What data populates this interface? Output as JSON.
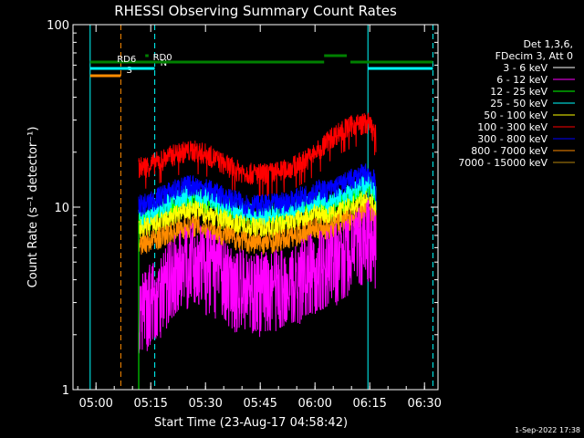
{
  "chart_data": {
    "type": "line",
    "title": "RHESSI Observing Summary Count Rates",
    "xlabel": "Start Time (23-Aug-17 04:58:42)",
    "ylabel": "Count Rate (s⁻¹ detector⁻¹)",
    "y_scale": "log",
    "ylim": [
      1,
      100
    ],
    "xlim_minutes_after_start": [
      -5,
      95
    ],
    "x_ticks": [
      {
        "label": "05:00",
        "minutes": 1.3
      },
      {
        "label": "05:15",
        "minutes": 16.3
      },
      {
        "label": "05:30",
        "minutes": 31.3
      },
      {
        "label": "05:45",
        "minutes": 46.3
      },
      {
        "label": "06:00",
        "minutes": 61.3
      },
      {
        "label": "06:15",
        "minutes": 76.3
      },
      {
        "label": "06:30",
        "minutes": 91.3
      }
    ],
    "y_ticks": [
      {
        "label": "1",
        "value": 1
      },
      {
        "label": "10",
        "value": 10
      },
      {
        "label": "100",
        "value": 100
      }
    ],
    "legend": {
      "header": [
        "Det 1,3,6,",
        "FDecim 3, Att 0"
      ],
      "placement": "right"
    },
    "series": [
      {
        "name": "3 - 6 keV",
        "color": "#000000",
        "minutes": [
          13,
          16,
          20,
          24,
          28,
          32,
          36,
          40,
          44,
          48,
          52,
          56,
          60,
          63,
          64.5,
          68,
          72,
          76,
          78
        ],
        "values": [
          7.0,
          7.2,
          7.8,
          8.6,
          9.0,
          8.6,
          8.0,
          7.6,
          7.3,
          7.3,
          7.5,
          7.9,
          8.5,
          8.8,
          8.0,
          8.2,
          9.0,
          10.5,
          9.0
        ]
      },
      {
        "name": "6 - 12 keV",
        "color": "#ff00ff",
        "minutes": [
          13,
          16,
          20,
          24,
          28,
          32,
          36,
          40,
          44,
          48,
          52,
          56,
          60,
          63,
          64.5,
          68,
          72,
          76,
          78
        ],
        "values": [
          3.0,
          3.3,
          4.0,
          5.0,
          5.5,
          5.1,
          4.5,
          4.0,
          3.8,
          3.8,
          4.0,
          4.3,
          4.8,
          5.0,
          5.2,
          5.6,
          6.2,
          7.6,
          6.4
        ]
      },
      {
        "name": "12 - 25 keV",
        "color": "#00ff00",
        "minutes": [
          13,
          16,
          20,
          24,
          28,
          32,
          36,
          40,
          44,
          48,
          52,
          56,
          60,
          63,
          64.5,
          68,
          72,
          76,
          78
        ],
        "values": [
          8.2,
          8.5,
          9.5,
          10.5,
          11.0,
          10.4,
          9.5,
          8.9,
          8.6,
          8.6,
          8.8,
          9.3,
          10.0,
          10.5,
          9.8,
          10.5,
          11.8,
          13.5,
          11.5
        ]
      },
      {
        "name": "25 - 50 keV",
        "color": "#00ffff",
        "minutes": [
          13,
          16,
          20,
          24,
          28,
          32,
          36,
          40,
          44,
          48,
          52,
          56,
          60,
          63,
          64.5,
          68,
          72,
          76,
          78
        ],
        "values": [
          8.8,
          9.2,
          10.3,
          11.3,
          11.8,
          11.2,
          10.3,
          9.6,
          9.2,
          9.2,
          9.4,
          9.9,
          10.6,
          11.0,
          10.5,
          11.2,
          12.3,
          14.0,
          12.0
        ]
      },
      {
        "name": "50 - 100 keV",
        "color": "#ffff00",
        "minutes": [
          13,
          16,
          20,
          24,
          28,
          32,
          36,
          40,
          44,
          48,
          52,
          56,
          60,
          63,
          64.5,
          68,
          72,
          76,
          78
        ],
        "values": [
          7.6,
          7.8,
          8.4,
          9.2,
          9.6,
          9.2,
          8.6,
          8.1,
          7.8,
          7.8,
          8.0,
          8.4,
          9.0,
          9.3,
          8.8,
          9.4,
          10.2,
          11.0,
          9.5
        ]
      },
      {
        "name": "100 - 300 keV",
        "color": "#ff0000",
        "minutes": [
          13,
          16,
          20,
          24,
          28,
          32,
          36,
          40,
          44,
          48,
          52,
          56,
          60,
          63,
          64.5,
          68,
          72,
          76,
          78
        ],
        "values": [
          16.5,
          17.0,
          18.5,
          20.0,
          20.5,
          19.5,
          17.5,
          16.0,
          15.3,
          15.3,
          15.8,
          17.0,
          19.0,
          21.0,
          23.0,
          26.0,
          28.5,
          29.0,
          25.0
        ]
      },
      {
        "name": "300 - 800 keV",
        "color": "#0000ff",
        "minutes": [
          13,
          16,
          20,
          24,
          28,
          32,
          36,
          40,
          44,
          48,
          52,
          56,
          60,
          63,
          64.5,
          68,
          72,
          76,
          78
        ],
        "values": [
          10.2,
          10.6,
          11.8,
          12.8,
          13.3,
          12.6,
          11.5,
          10.8,
          10.3,
          10.3,
          10.6,
          11.1,
          12.0,
          12.6,
          12.3,
          13.2,
          14.5,
          15.6,
          13.5
        ]
      },
      {
        "name": "800 - 7000 keV",
        "color": "#ff8c00",
        "minutes": [
          13,
          16,
          20,
          24,
          28,
          32,
          36,
          40,
          44,
          48,
          52,
          56,
          60,
          63,
          64.5,
          68,
          72,
          76,
          78
        ],
        "values": [
          6.3,
          6.5,
          7.0,
          7.6,
          8.0,
          7.6,
          7.1,
          6.7,
          6.4,
          6.4,
          6.6,
          7.0,
          7.5,
          7.8,
          7.5,
          8.1,
          8.7,
          9.5,
          8.3
        ]
      },
      {
        "name": "7000 - 15000 keV",
        "color": "#b8860b",
        "minutes": [],
        "values": []
      }
    ],
    "vertical_markers": [
      {
        "color": "#00ffff",
        "style": "solid",
        "minutes": -0.3
      },
      {
        "color": "#ff8c00",
        "style": "dashed",
        "minutes": 8.1
      },
      {
        "color": "#00ffff",
        "style": "dashed",
        "minutes": 17.4
      },
      {
        "color": "#00ffff",
        "style": "solid",
        "minutes": 75.8
      },
      {
        "color": "#00ffff",
        "style": "dashed",
        "minutes": 93.6
      }
    ],
    "flag_bars": [
      {
        "label": "S",
        "color": "#ff8c00",
        "y": 83,
        "segments": [
          [
            -0.3,
            8.1
          ]
        ]
      },
      {
        "label": "N",
        "color": "#00ffff",
        "y": 75,
        "segments": [
          [
            -0.3,
            17.4
          ],
          [
            75.8,
            93.6
          ]
        ]
      },
      {
        "label": "RD0",
        "color": "#008000",
        "y": 68,
        "segments": [
          [
            -0.3,
            63.8
          ],
          [
            71.0,
            93.6
          ]
        ]
      },
      {
        "label": "RD6",
        "color": "#008000",
        "y": 61,
        "segments": [
          [
            14.8,
            15.7
          ],
          [
            63.8,
            70.0
          ]
        ]
      }
    ]
  },
  "footer": {
    "date": "1-Sep-2022 17:38"
  }
}
